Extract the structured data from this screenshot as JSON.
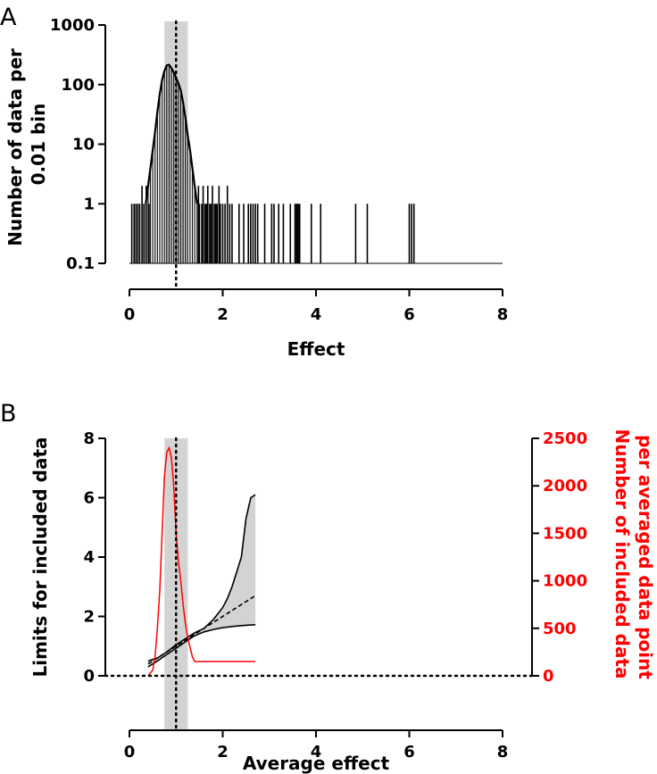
{
  "chart_data": [
    {
      "id": "panel-a",
      "type": "histogram",
      "panel_label": "A",
      "title": "",
      "xlabel": "Effect",
      "ylabel": "Number of data per 0.01 bin",
      "ylabel_lines": [
        "Number of data per",
        "0.01 bin"
      ],
      "xscale": "linear",
      "yscale": "log",
      "xlim": [
        0,
        8
      ],
      "ylim": [
        0.1,
        1000
      ],
      "xticks": [
        0,
        2,
        4,
        6,
        8
      ],
      "xtick_labels": [
        "0",
        "2",
        "4",
        "6",
        "8"
      ],
      "yticks": [
        0.1,
        1,
        10,
        100,
        1000
      ],
      "ytick_labels": [
        "0.1",
        "1",
        "10",
        "100",
        "1000"
      ],
      "baseline": 0.1,
      "shaded_band": [
        0.75,
        1.25
      ],
      "reference_line_x": 1.0,
      "curve": [
        [
          0.35,
          1
        ],
        [
          0.4,
          2
        ],
        [
          0.45,
          4
        ],
        [
          0.5,
          8
        ],
        [
          0.55,
          16
        ],
        [
          0.6,
          35
        ],
        [
          0.65,
          70
        ],
        [
          0.7,
          120
        ],
        [
          0.75,
          170
        ],
        [
          0.8,
          210
        ],
        [
          0.85,
          215
        ],
        [
          0.9,
          190
        ],
        [
          0.95,
          160
        ],
        [
          1.0,
          130
        ],
        [
          1.05,
          105
        ],
        [
          1.1,
          80
        ],
        [
          1.15,
          50
        ],
        [
          1.2,
          28
        ],
        [
          1.25,
          14
        ],
        [
          1.3,
          8
        ],
        [
          1.35,
          4
        ],
        [
          1.4,
          2
        ],
        [
          1.45,
          1
        ]
      ],
      "spikes": [
        [
          0.05,
          1
        ],
        [
          0.1,
          1
        ],
        [
          0.14,
          1
        ],
        [
          0.18,
          1
        ],
        [
          0.22,
          1
        ],
        [
          0.27,
          2
        ],
        [
          0.31,
          1
        ],
        [
          0.36,
          2
        ],
        [
          0.42,
          1
        ],
        [
          1.48,
          2
        ],
        [
          1.5,
          1
        ],
        [
          1.55,
          1
        ],
        [
          1.58,
          2
        ],
        [
          1.62,
          1
        ],
        [
          1.65,
          1
        ],
        [
          1.68,
          2
        ],
        [
          1.72,
          1
        ],
        [
          1.75,
          1
        ],
        [
          1.78,
          2
        ],
        [
          1.82,
          1
        ],
        [
          1.85,
          1
        ],
        [
          1.88,
          1
        ],
        [
          1.92,
          2
        ],
        [
          1.95,
          1
        ],
        [
          2.0,
          1
        ],
        [
          2.05,
          1
        ],
        [
          2.1,
          2
        ],
        [
          2.15,
          1
        ],
        [
          2.2,
          1
        ],
        [
          2.35,
          1
        ],
        [
          2.45,
          1
        ],
        [
          2.55,
          1
        ],
        [
          2.6,
          1
        ],
        [
          2.65,
          1
        ],
        [
          2.7,
          1
        ],
        [
          2.75,
          1
        ],
        [
          2.9,
          1
        ],
        [
          3.05,
          1
        ],
        [
          3.1,
          1
        ],
        [
          3.2,
          1
        ],
        [
          3.3,
          1
        ],
        [
          3.45,
          1
        ],
        [
          3.55,
          1
        ],
        [
          3.58,
          1
        ],
        [
          3.6,
          1
        ],
        [
          3.62,
          1
        ],
        [
          3.65,
          1
        ],
        [
          3.9,
          1
        ],
        [
          4.1,
          1
        ],
        [
          4.85,
          1
        ],
        [
          5.1,
          1
        ],
        [
          6.0,
          1
        ],
        [
          6.05,
          1
        ],
        [
          6.1,
          1
        ]
      ]
    },
    {
      "id": "panel-b",
      "type": "line",
      "panel_label": "B",
      "title": "",
      "xlabel": "Average effect",
      "ylabel": "Limits for included data",
      "y2label": "Number of included data per averaged data point",
      "y2label_lines": [
        "Number of included data",
        "per averaged data point"
      ],
      "xlim": [
        0,
        8
      ],
      "ylim": [
        0,
        8
      ],
      "y2lim": [
        0,
        2500
      ],
      "xticks": [
        0,
        2,
        4,
        6,
        8
      ],
      "xtick_labels": [
        "0",
        "2",
        "4",
        "6",
        "8"
      ],
      "yticks": [
        0,
        2,
        4,
        6,
        8
      ],
      "ytick_labels": [
        "0",
        "2",
        "4",
        "6",
        "8"
      ],
      "y2ticks": [
        0,
        500,
        1000,
        1500,
        2000,
        2500
      ],
      "y2tick_labels": [
        "0",
        "500",
        "1000",
        "1500",
        "2000",
        "2500"
      ],
      "y2_color": "#ff0000",
      "shaded_band_x": [
        0.75,
        1.25
      ],
      "reference_line_x": 1.0,
      "reference_line_y": 0,
      "series": [
        {
          "name": "Upper limit",
          "axis": "left",
          "color": "#000000",
          "x": [
            0.4,
            0.6,
            0.8,
            1.0,
            1.2,
            1.4,
            1.6,
            1.8,
            1.9,
            2.0,
            2.1,
            2.2,
            2.3,
            2.4,
            2.5,
            2.6,
            2.7
          ],
          "y": [
            0.5,
            0.6,
            0.8,
            1.05,
            1.25,
            1.45,
            1.6,
            1.9,
            2.1,
            2.3,
            2.6,
            3.0,
            3.5,
            4.0,
            5.3,
            6.0,
            6.1
          ]
        },
        {
          "name": "Lower limit",
          "axis": "left",
          "color": "#000000",
          "x": [
            0.4,
            0.6,
            0.8,
            1.0,
            1.2,
            1.4,
            1.6,
            1.8,
            2.0,
            2.2,
            2.4,
            2.6,
            2.7
          ],
          "y": [
            0.3,
            0.5,
            0.72,
            0.93,
            1.15,
            1.35,
            1.48,
            1.56,
            1.62,
            1.66,
            1.69,
            1.71,
            1.72
          ]
        },
        {
          "name": "Identity line",
          "axis": "left",
          "color": "#000000",
          "dashed": true,
          "x": [
            0.4,
            2.7
          ],
          "y": [
            0.4,
            2.7
          ]
        },
        {
          "name": "Number of included data",
          "axis": "right",
          "color": "#ff0000",
          "x": [
            0.4,
            0.5,
            0.55,
            0.6,
            0.65,
            0.7,
            0.75,
            0.8,
            0.85,
            0.9,
            0.95,
            1.0,
            1.05,
            1.1,
            1.15,
            1.2,
            1.25,
            1.3,
            1.35,
            1.4,
            1.5,
            2.0,
            2.7
          ],
          "y": [
            0,
            60,
            200,
            500,
            900,
            1500,
            2100,
            2350,
            2400,
            2300,
            2000,
            1500,
            1200,
            1000,
            750,
            550,
            400,
            300,
            200,
            150,
            150,
            150,
            150
          ]
        }
      ]
    }
  ]
}
